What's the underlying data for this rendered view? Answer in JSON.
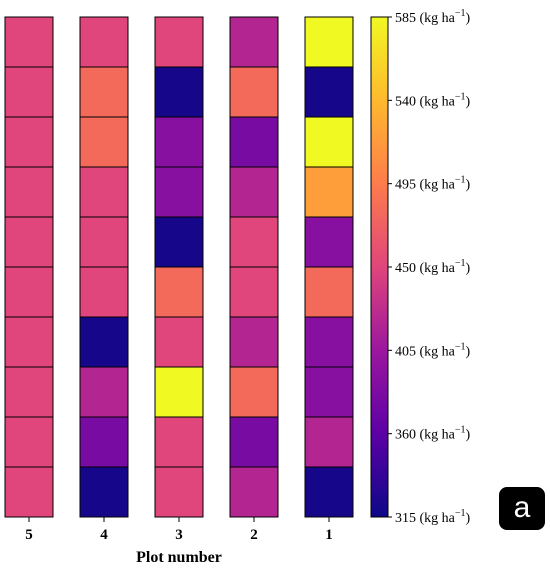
{
  "chart_data": {
    "type": "heatmap",
    "xlabel": "Plot number",
    "x_tick_labels": [
      "5",
      "4",
      "3",
      "2",
      "1"
    ],
    "rows": 10,
    "grid": false,
    "values": [
      [
        450,
        450,
        450,
        420,
        585
      ],
      [
        450,
        480,
        320,
        480,
        320
      ],
      [
        450,
        480,
        390,
        380,
        585
      ],
      [
        450,
        450,
        390,
        420,
        520
      ],
      [
        450,
        450,
        320,
        450,
        390
      ],
      [
        450,
        450,
        480,
        450,
        480
      ],
      [
        450,
        320,
        450,
        420,
        390
      ],
      [
        450,
        420,
        585,
        480,
        390
      ],
      [
        450,
        380,
        450,
        380,
        420
      ],
      [
        450,
        320,
        450,
        420,
        320
      ]
    ],
    "colorbar": {
      "min": 315,
      "max": 585,
      "ticks": [
        315,
        360,
        405,
        450,
        495,
        540,
        585
      ],
      "unit": "(kg ha",
      "unit_superscript": "−1",
      "unit_close": ")",
      "colormap": "plasma"
    }
  },
  "panel_label": "a"
}
